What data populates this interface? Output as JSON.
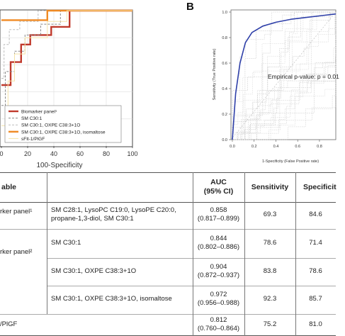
{
  "panel_b": {
    "label": "B"
  },
  "chart_data": [
    {
      "type": "line",
      "panel": "A",
      "xlabel": "100-Specificity",
      "x_ticks": [
        "0",
        "20",
        "40",
        "60",
        "80",
        "100"
      ],
      "xlim": [
        0,
        100
      ],
      "ylim": [
        0,
        100
      ],
      "legend": [
        "Biomarker panel¹",
        "SM C30:1",
        "SM C30:1, OXPE C38:3+1O",
        "SM C30:1, OXPE C38:3+1O, isomaltose",
        "sFlt-1/PlGF"
      ],
      "legend_placement": "bottom-right",
      "series": [
        {
          "name": "Biomarker panel¹",
          "color": "#c0392b",
          "points": [
            [
              0,
              45
            ],
            [
              7,
              45
            ],
            [
              7,
              62
            ],
            [
              15,
              62
            ],
            [
              15,
              75
            ],
            [
              22,
              75
            ],
            [
              22,
              82
            ],
            [
              38,
              82
            ],
            [
              38,
              88
            ],
            [
              52,
              88
            ],
            [
              52,
              100
            ],
            [
              100,
              100
            ]
          ]
        },
        {
          "name": "SM C30:1",
          "color": "#888888",
          "points": [
            [
              0,
              30
            ],
            [
              3,
              30
            ],
            [
              3,
              55
            ],
            [
              10,
              55
            ],
            [
              10,
              70
            ],
            [
              18,
              70
            ],
            [
              18,
              82
            ],
            [
              30,
              82
            ],
            [
              30,
              90
            ],
            [
              45,
              90
            ],
            [
              45,
              100
            ],
            [
              100,
              100
            ]
          ]
        },
        {
          "name": "SM C30:1, OXPE C38:3+1O",
          "color": "#bbbbbb",
          "points": [
            [
              0,
              50
            ],
            [
              2,
              50
            ],
            [
              2,
              75
            ],
            [
              6,
              75
            ],
            [
              6,
              86
            ],
            [
              14,
              86
            ],
            [
              14,
              92
            ],
            [
              28,
              92
            ],
            [
              28,
              100
            ],
            [
              100,
              100
            ]
          ]
        },
        {
          "name": "SM C30:1, OXPE C38:3+1O, isomaltose",
          "color": "#f08a24",
          "points": [
            [
              0,
              93
            ],
            [
              35,
              93
            ],
            [
              35,
              100
            ],
            [
              100,
              100
            ]
          ]
        },
        {
          "name": "sFlt-1/PlGF",
          "color": "#f5e3a8",
          "points": [
            [
              0,
              15
            ],
            [
              5,
              15
            ],
            [
              5,
              48
            ],
            [
              10,
              48
            ],
            [
              10,
              68
            ],
            [
              18,
              68
            ],
            [
              18,
              80
            ],
            [
              35,
              80
            ],
            [
              35,
              92
            ],
            [
              50,
              92
            ],
            [
              50,
              100
            ],
            [
              100,
              100
            ]
          ]
        }
      ]
    },
    {
      "type": "line",
      "panel": "B",
      "xlabel": "1-Specificity (False Positive rate)",
      "ylabel": "Sensitivity (True Positive rate)",
      "x_ticks": [
        "0.0",
        "0.2",
        "0.4",
        "0.6",
        "0.8"
      ],
      "y_ticks": [
        "0.0",
        "0.2",
        "0.4",
        "0.6",
        "0.8",
        "1.0"
      ],
      "xlim": [
        0,
        0.95
      ],
      "ylim": [
        0,
        1.0
      ],
      "annotation": "Empirical p-value:  p = 0.01",
      "series": [
        {
          "color": "#2e3fa8",
          "points": [
            [
              0,
              0
            ],
            [
              0.03,
              0.36
            ],
            [
              0.07,
              0.6
            ],
            [
              0.12,
              0.76
            ],
            [
              0.18,
              0.84
            ],
            [
              0.28,
              0.89
            ],
            [
              0.4,
              0.92
            ],
            [
              0.55,
              0.945
            ],
            [
              0.7,
              0.96
            ],
            [
              0.85,
              0.975
            ],
            [
              0.95,
              0.985
            ]
          ]
        }
      ]
    }
  ],
  "table": {
    "headers": {
      "variable": "able",
      "auc": "AUC\n(95% CI)",
      "sens": "Sensitivity",
      "spec": "Specificit"
    },
    "rows": [
      {
        "group": "rker panel¹",
        "metabolites": "SM C28:1, LysoPC C19:0, LysoPE C20:0,\npropane-1,3-diol, SM C30:1",
        "auc": "0.858\n(0.817–0.899)",
        "sens": "69.3",
        "spec": "84.6"
      },
      {
        "group": "rker panel²",
        "metabolites": "SM C30:1",
        "auc": "0.844\n(0.802–0.886)",
        "sens": "78.6",
        "spec": "71.4"
      },
      {
        "group": "",
        "metabolites": "SM C30:1, OXPE C38:3+1O",
        "auc": "0.904\n(0.872–0.937)",
        "sens": "83.8",
        "spec": "78.6"
      },
      {
        "group": "",
        "metabolites": "SM C30:1, OXPE C38:3+1O, isomaltose",
        "auc": "0.972\n(0.956–0.988)",
        "sens": "92.3",
        "spec": "85.7"
      },
      {
        "group": "/PlGF",
        "metabolites": "",
        "auc": "0.812\n(0.760–0.864)",
        "sens": "75.2",
        "spec": "81.0"
      }
    ]
  }
}
